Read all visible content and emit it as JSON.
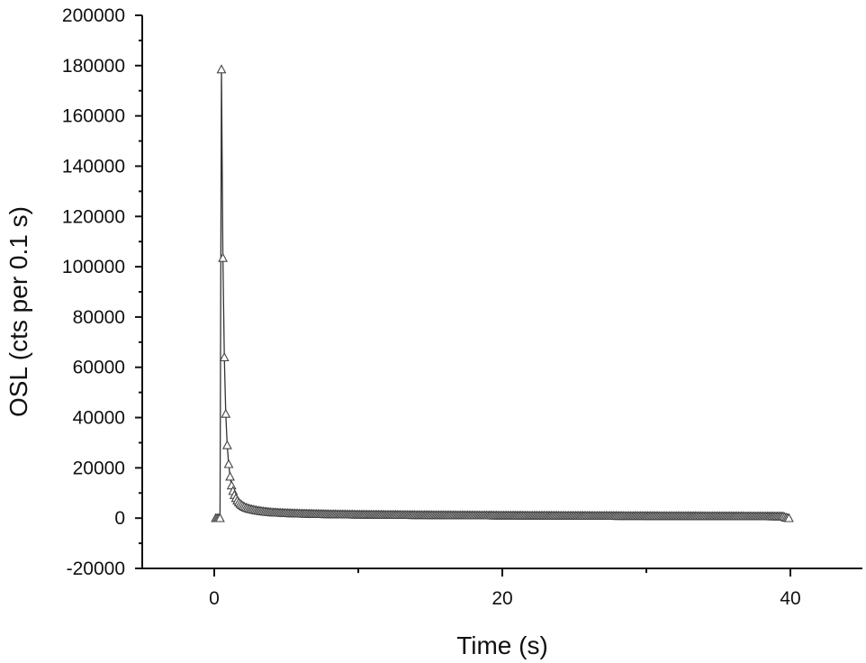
{
  "chart_data": {
    "type": "line",
    "title": "",
    "xlabel": "Time (s)",
    "ylabel": "OSL (cts per 0.1 s)",
    "xlim": [
      -5,
      45
    ],
    "ylim": [
      -20000,
      200000
    ],
    "x_ticks": [
      0,
      20,
      40
    ],
    "x_tick_labels": [
      "0",
      "20",
      "40"
    ],
    "x_minor_ticks": [
      10,
      30
    ],
    "y_ticks": [
      -20000,
      0,
      20000,
      40000,
      60000,
      80000,
      100000,
      120000,
      140000,
      160000,
      180000,
      200000
    ],
    "y_tick_labels": [
      "-20000",
      "0",
      "20000",
      "40000",
      "60000",
      "80000",
      "100000",
      "120000",
      "140000",
      "160000",
      "180000",
      "200000"
    ],
    "grid": false,
    "marker": "open-triangle",
    "series": [
      {
        "x": [
          0.1,
          0.2,
          0.3,
          0.4,
          0.5,
          0.6,
          0.7,
          0.8,
          0.9,
          1.0,
          1.1,
          1.2,
          1.3,
          1.4,
          1.5,
          1.6,
          1.7,
          1.8,
          1.9,
          2.0,
          2.2,
          2.4,
          2.6,
          2.8,
          3.0,
          3.5,
          4.0,
          5.0,
          6.0,
          8.0,
          10.0,
          15.0,
          20.0,
          25.0,
          30.0,
          35.0,
          39.5,
          39.7,
          39.9
        ],
        "y": [
          0,
          0,
          0,
          0,
          178500,
          103500,
          64000,
          41500,
          29000,
          21500,
          16500,
          13000,
          10800,
          9200,
          8000,
          7000,
          6300,
          5700,
          5200,
          4800,
          4200,
          3800,
          3500,
          3250,
          3000,
          2600,
          2300,
          2000,
          1800,
          1550,
          1400,
          1200,
          1050,
          950,
          850,
          780,
          700,
          200,
          0
        ]
      }
    ]
  }
}
